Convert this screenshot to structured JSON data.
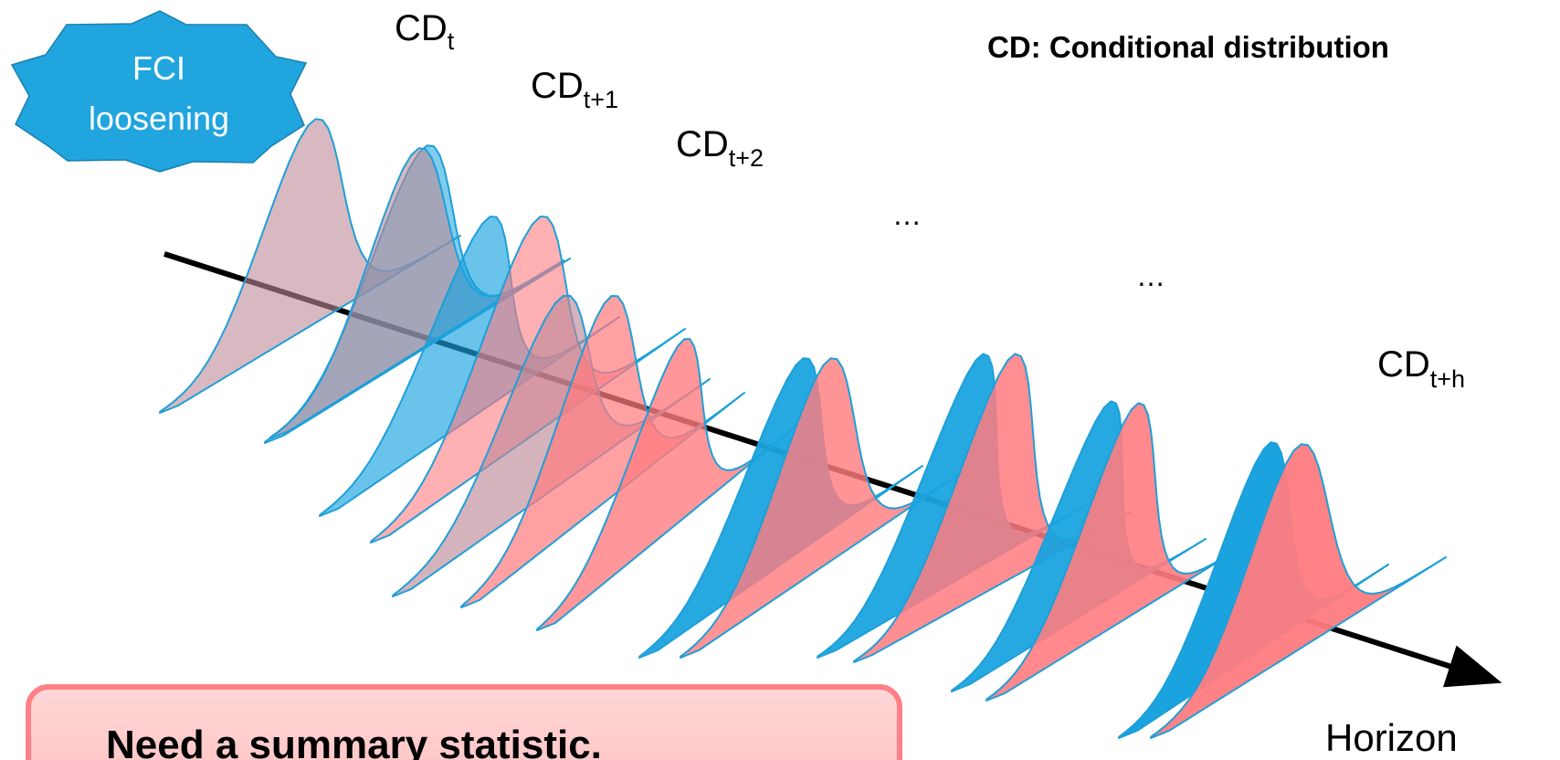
{
  "badge": {
    "line1": "FCI",
    "line2": "loosening"
  },
  "labels": [
    {
      "base": "CD",
      "sub": "t"
    },
    {
      "base": "CD",
      "sub": "t+1"
    },
    {
      "base": "CD",
      "sub": "t+2"
    },
    {
      "base": "CD",
      "sub": "t+h"
    }
  ],
  "ellipses": [
    "…",
    "…"
  ],
  "legend": "CD: Conditional distribution",
  "axis_label": "Horizon",
  "callout": "Need a summary statistic.",
  "colors": {
    "blue_fill": "#1AA3DE",
    "blue_outline": "#1E9FD8",
    "red_fill": "#FF7C80",
    "mauve_fill": "#BE8A98",
    "badge_fill": "#20A5DF",
    "callout_fill": "#FFD0D0",
    "callout_border": "#FF8088",
    "axis": "#000000"
  },
  "distributions": [
    {
      "color": "mauve",
      "opacity": 0.6
    },
    {
      "color": "blue",
      "opacity": 0.55
    },
    {
      "color": "mauve",
      "opacity": 0.6
    },
    {
      "color": "blue",
      "opacity": 0.65
    },
    {
      "color": "red",
      "opacity": 0.6
    },
    {
      "color": "mauve",
      "opacity": 0.65
    },
    {
      "color": "red",
      "opacity": 0.72
    },
    {
      "color": "red",
      "opacity": 0.8
    },
    {
      "color": "blue",
      "opacity": 0.95
    },
    {
      "color": "red",
      "opacity": 0.82
    },
    {
      "color": "blue",
      "opacity": 0.95
    },
    {
      "color": "red",
      "opacity": 0.86
    },
    {
      "color": "blue",
      "opacity": 0.95
    },
    {
      "color": "red",
      "opacity": 0.9
    },
    {
      "color": "blue",
      "opacity": 1
    },
    {
      "color": "red",
      "opacity": 0.95
    }
  ]
}
